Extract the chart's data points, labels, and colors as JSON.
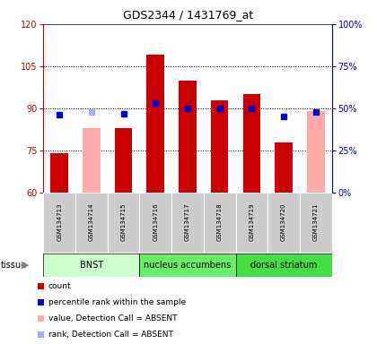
{
  "title": "GDS2344 / 1431769_at",
  "samples": [
    "GSM134713",
    "GSM134714",
    "GSM134715",
    "GSM134716",
    "GSM134717",
    "GSM134718",
    "GSM134719",
    "GSM134720",
    "GSM134721"
  ],
  "count_values": [
    74,
    null,
    83,
    109,
    100,
    93,
    95,
    78,
    null
  ],
  "count_absent": [
    null,
    83,
    null,
    null,
    null,
    null,
    null,
    null,
    89
  ],
  "rank_values": [
    46,
    null,
    47,
    53,
    50,
    50,
    50,
    45,
    48
  ],
  "rank_absent": [
    null,
    48,
    null,
    null,
    null,
    null,
    null,
    null,
    null
  ],
  "ylim_left": [
    60,
    120
  ],
  "ylim_right": [
    0,
    100
  ],
  "yticks_left": [
    60,
    75,
    90,
    105,
    120
  ],
  "yticks_right": [
    0,
    25,
    50,
    75,
    100
  ],
  "ytick_labels_right": [
    "0%",
    "25%",
    "50%",
    "75%",
    "100%"
  ],
  "tissue_data": [
    {
      "label": "BNST",
      "start": 0,
      "end": 3,
      "color": "#ccffcc"
    },
    {
      "label": "nucleus accumbens",
      "start": 3,
      "end": 6,
      "color": "#66ee66"
    },
    {
      "label": "dorsal striatum",
      "start": 6,
      "end": 9,
      "color": "#44dd44"
    }
  ],
  "bar_color_present": "#cc0000",
  "bar_color_absent": "#ffaaaa",
  "rank_color_present": "#0000cc",
  "rank_color_absent": "#aaaaff",
  "sample_bg_color": "#cccccc",
  "plot_bg": "#ffffff",
  "left_axis_color": "#cc0000",
  "right_axis_color": "#0000cc",
  "title_fontsize": 9,
  "tick_fontsize": 7,
  "sample_fontsize": 5,
  "tissue_fontsize": 7,
  "legend_fontsize": 6.5
}
